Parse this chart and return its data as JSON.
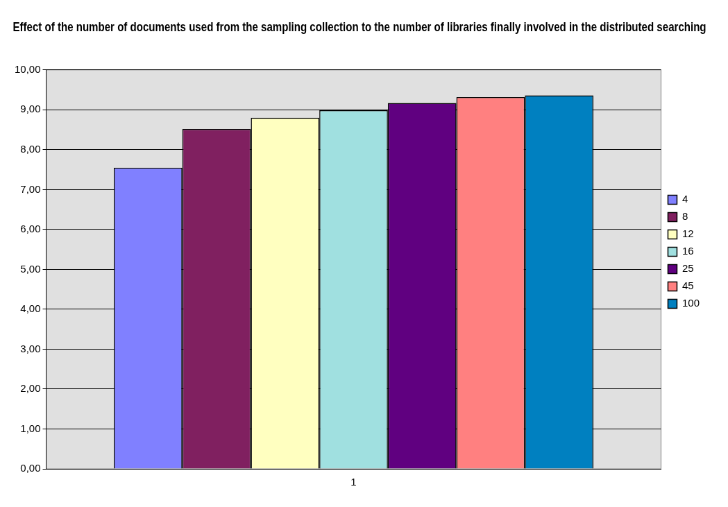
{
  "chart_data": {
    "type": "bar",
    "title": "Effect of the number of documents used from the sampling collection to the number of libraries finally involved in the distributed searching",
    "categories": [
      "1"
    ],
    "series": [
      {
        "name": "4",
        "color": "#8080ff",
        "values": [
          7.55
        ]
      },
      {
        "name": "8",
        "color": "#802060",
        "values": [
          8.52
        ]
      },
      {
        "name": "12",
        "color": "#ffffc0",
        "values": [
          8.8
        ]
      },
      {
        "name": "16",
        "color": "#a0e0e0",
        "values": [
          8.99
        ]
      },
      {
        "name": "25",
        "color": "#600080",
        "values": [
          9.17
        ]
      },
      {
        "name": "45",
        "color": "#ff8080",
        "values": [
          9.32
        ]
      },
      {
        "name": "100",
        "color": "#0080c0",
        "values": [
          9.36
        ]
      }
    ],
    "ylim": [
      0,
      10
    ],
    "yticks": [
      {
        "value": 0,
        "label": "0,00"
      },
      {
        "value": 1,
        "label": "1,00"
      },
      {
        "value": 2,
        "label": "2,00"
      },
      {
        "value": 3,
        "label": "3,00"
      },
      {
        "value": 4,
        "label": "4,00"
      },
      {
        "value": 5,
        "label": "5,00"
      },
      {
        "value": 6,
        "label": "6,00"
      },
      {
        "value": 7,
        "label": "7,00"
      },
      {
        "value": 8,
        "label": "8,00"
      },
      {
        "value": 9,
        "label": "9,00"
      },
      {
        "value": 10,
        "label": "10,00"
      }
    ],
    "grid": "y",
    "legend": "right"
  }
}
